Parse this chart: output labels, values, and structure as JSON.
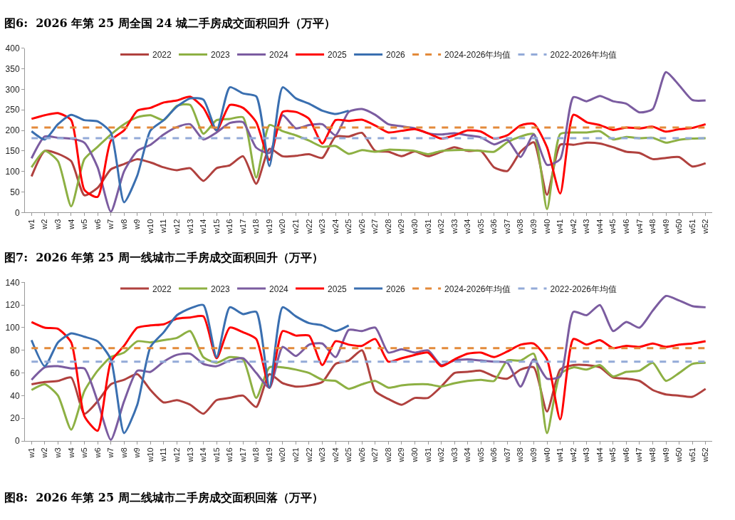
{
  "chart_data": [
    {
      "type": "line",
      "title": "图6:  2026 年第 25 周全国 24 城二手房成交面积回升（万平）",
      "categories": [
        "w1",
        "w2",
        "w3",
        "w4",
        "w5",
        "w6",
        "w7",
        "w8",
        "w9",
        "w10",
        "w11",
        "w12",
        "w13",
        "w14",
        "w15",
        "w16",
        "w17",
        "w18",
        "w19",
        "w20",
        "w21",
        "w22",
        "w23",
        "w24",
        "w25",
        "w26",
        "w27",
        "w28",
        "w29",
        "w30",
        "w31",
        "w32",
        "w33",
        "w34",
        "w35",
        "w36",
        "w37",
        "w38",
        "w39",
        "w40",
        "w41",
        "w42",
        "w43",
        "w44",
        "w45",
        "w46",
        "w47",
        "w48",
        "w49",
        "w50",
        "w51",
        "w52"
      ],
      "series": [
        {
          "name": "2022",
          "color": "#b0413e",
          "values": [
            88,
            150,
            143,
            125,
            42,
            60,
            105,
            118,
            130,
            122,
            110,
            103,
            108,
            77,
            108,
            115,
            137,
            70,
            155,
            137,
            138,
            142,
            133,
            185,
            185,
            194,
            150,
            148,
            137,
            149,
            137,
            148,
            159,
            150,
            150,
            110,
            101,
            148,
            171,
            43,
            165,
            165,
            170,
            168,
            159,
            148,
            145,
            130,
            133,
            135,
            112,
            120
          ]
        },
        {
          "name": "2023",
          "color": "#8db043",
          "values": [
            110,
            150,
            125,
            15,
            130,
            160,
            190,
            215,
            232,
            237,
            225,
            260,
            262,
            192,
            225,
            228,
            232,
            85,
            213,
            198,
            188,
            175,
            160,
            162,
            143,
            152,
            148,
            153,
            152,
            150,
            142,
            150,
            152,
            152,
            150,
            148,
            171,
            185,
            191,
            8,
            191,
            195,
            195,
            198,
            178,
            184,
            181,
            182,
            170,
            177,
            180,
            181
          ]
        },
        {
          "name": "2024",
          "color": "#7b5ca0",
          "values": [
            132,
            185,
            182,
            180,
            170,
            110,
            2,
            100,
            150,
            165,
            190,
            208,
            215,
            178,
            195,
            218,
            220,
            158,
            145,
            237,
            205,
            213,
            215,
            188,
            245,
            252,
            238,
            215,
            210,
            205,
            193,
            190,
            193,
            188,
            183,
            166,
            177,
            135,
            190,
            116,
            130,
            281,
            271,
            284,
            271,
            265,
            244,
            252,
            342,
            310,
            274,
            273
          ]
        },
        {
          "name": "2025",
          "color": "#ff0000",
          "values": [
            228,
            237,
            242,
            225,
            55,
            38,
            175,
            200,
            248,
            255,
            268,
            273,
            282,
            255,
            200,
            262,
            255,
            220,
            128,
            245,
            245,
            228,
            168,
            225,
            223,
            226,
            212,
            195,
            199,
            203,
            193,
            180,
            188,
            200,
            197,
            180,
            188,
            212,
            216,
            159,
            46,
            238,
            220,
            213,
            201,
            207,
            205,
            209,
            197,
            203,
            206,
            215
          ]
        },
        {
          "name": "2026",
          "color": "#3a6fb0",
          "values": [
            198,
            178,
            215,
            238,
            225,
            222,
            195,
            25,
            90,
            200,
            225,
            258,
            278,
            275,
            200,
            305,
            290,
            283,
            113,
            305,
            278,
            265,
            248,
            240,
            248,
            null,
            null,
            null,
            null,
            null,
            null,
            null,
            null,
            null,
            null,
            null,
            null,
            null,
            null,
            null,
            null,
            null,
            null,
            null,
            null,
            null,
            null,
            null,
            null,
            null,
            null,
            null
          ]
        }
      ],
      "ref_lines": [
        {
          "axis": "y",
          "value": 207,
          "label": "2024-2026年均值",
          "color": "#e38a3a",
          "line_style": "dashed"
        },
        {
          "axis": "y",
          "value": 181,
          "label": "2022-2026年均值",
          "color": "#93aad8",
          "line_style": "dashed"
        }
      ],
      "ylim": [
        0,
        400
      ],
      "yticks": [
        0,
        50,
        100,
        150,
        200,
        250,
        300,
        350,
        400
      ],
      "grid": false,
      "legend": "top",
      "line_style": "solid"
    },
    {
      "type": "line",
      "title": "图7:  2026 年第 25 周一线城市二手房成交面积回升（万平）",
      "categories": [
        "w1",
        "w2",
        "w3",
        "w4",
        "w5",
        "w6",
        "w7",
        "w8",
        "w9",
        "w10",
        "w11",
        "w12",
        "w13",
        "w14",
        "w15",
        "w16",
        "w17",
        "w18",
        "w19",
        "w20",
        "w21",
        "w22",
        "w23",
        "w24",
        "w25",
        "w26",
        "w27",
        "w28",
        "w29",
        "w30",
        "w31",
        "w32",
        "w33",
        "w34",
        "w35",
        "w36",
        "w37",
        "w38",
        "w39",
        "w40",
        "w41",
        "w42",
        "w43",
        "w44",
        "w45",
        "w46",
        "w47",
        "w48",
        "w49",
        "w50",
        "w51",
        "w52"
      ],
      "series": [
        {
          "name": "2022",
          "color": "#b0413e",
          "values": [
            50,
            52,
            53,
            56,
            24,
            35,
            50,
            54,
            59,
            45,
            34,
            36,
            32,
            24,
            36,
            38,
            40,
            30,
            59,
            51,
            48,
            49,
            52,
            68,
            71,
            80,
            44,
            37,
            32,
            38,
            38,
            48,
            60,
            61,
            62,
            57,
            55,
            63,
            65,
            26,
            63,
            67,
            67,
            65,
            56,
            55,
            53,
            45,
            41,
            40,
            39,
            46
          ]
        },
        {
          "name": "2023",
          "color": "#8db043",
          "values": [
            45,
            50,
            40,
            10,
            44,
            62,
            74,
            78,
            88,
            87,
            89,
            91,
            97,
            74,
            69,
            74,
            72,
            38,
            65,
            65,
            63,
            60,
            54,
            53,
            46,
            50,
            53,
            47,
            49,
            50,
            50,
            48,
            51,
            53,
            54,
            53,
            71,
            71,
            77,
            7,
            59,
            65,
            63,
            67,
            57,
            61,
            62,
            69,
            53,
            60,
            68,
            69
          ]
        },
        {
          "name": "2024",
          "color": "#7b5ca0",
          "values": [
            54,
            65,
            66,
            64,
            64,
            35,
            1,
            35,
            62,
            61,
            70,
            76,
            77,
            68,
            66,
            71,
            73,
            60,
            47,
            83,
            75,
            85,
            86,
            74,
            98,
            97,
            100,
            78,
            81,
            78,
            80,
            67,
            71,
            72,
            71,
            70,
            69,
            48,
            72,
            55,
            57,
            114,
            111,
            120,
            97,
            105,
            100,
            115,
            128,
            124,
            119,
            118
          ]
        },
        {
          "name": "2025",
          "color": "#ff0000",
          "values": [
            105,
            100,
            99,
            87,
            22,
            9,
            70,
            84,
            100,
            102,
            103,
            108,
            109,
            110,
            73,
            100,
            96,
            90,
            47,
            97,
            93,
            93,
            67,
            88,
            85,
            84,
            90,
            70,
            73,
            76,
            78,
            66,
            72,
            77,
            78,
            74,
            79,
            85,
            86,
            72,
            19,
            90,
            85,
            89,
            82,
            84,
            83,
            86,
            83,
            85,
            86,
            88
          ]
        },
        {
          "name": "2026",
          "color": "#3a6fb0",
          "values": [
            89,
            66,
            87,
            95,
            92,
            88,
            72,
            7,
            32,
            83,
            96,
            111,
            117,
            120,
            74,
            118,
            112,
            114,
            47,
            118,
            110,
            104,
            102,
            97,
            102,
            null,
            null,
            null,
            null,
            null,
            null,
            null,
            null,
            null,
            null,
            null,
            null,
            null,
            null,
            null,
            null,
            null,
            null,
            null,
            null,
            null,
            null,
            null,
            null,
            null,
            null,
            null
          ]
        }
      ],
      "ref_lines": [
        {
          "axis": "y",
          "value": 82,
          "label": "2024-2026年均值",
          "color": "#e38a3a",
          "line_style": "dashed"
        },
        {
          "axis": "y",
          "value": 70,
          "label": "2022-2026年均值",
          "color": "#93aad8",
          "line_style": "dashed"
        }
      ],
      "ylim": [
        0,
        140
      ],
      "yticks": [
        0,
        20,
        40,
        60,
        80,
        100,
        120,
        140
      ],
      "grid": false,
      "legend": "top",
      "line_style": "solid",
      "annotations": [
        "图8:  2026 年第 25 周二线城市二手房成交面积回落（万平）"
      ]
    }
  ]
}
